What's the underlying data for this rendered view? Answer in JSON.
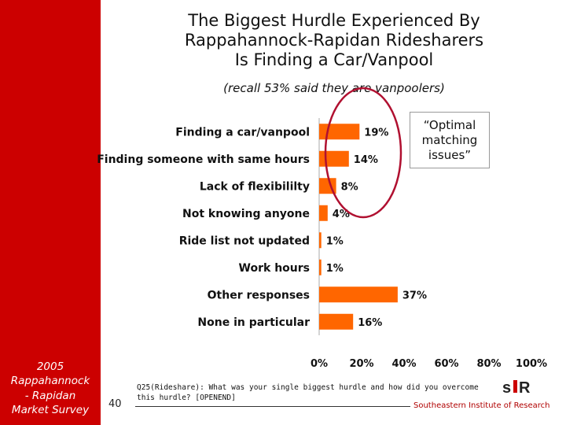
{
  "sidebar": {
    "text": "2005\nRappahannock\n- Rapidan\nMarket Survey",
    "color": "#cc0000"
  },
  "page_number": "40",
  "title": "The Biggest Hurdle Experienced By\nRappahannock-Rapidan Ridesharers\nIs Finding a Car/Vanpool",
  "subtitle": "(recall 53% said they are vanpoolers)",
  "callout": "“Optimal\nmatching\nissues”",
  "footnote": "Q25(Rideshare): What was your single biggest hurdle and how did you overcome this hurdle? [OPENEND]",
  "footer_org": "Southeastern Institute of Research",
  "logo_icon": "sir-logo-icon",
  "colors": {
    "bar": "#ff6600",
    "accent": "#cc0000",
    "circle": "#b01030"
  },
  "chart_data": {
    "type": "bar",
    "orientation": "horizontal",
    "categories": [
      "Finding a car/vanpool",
      "Finding someone with same hours",
      "Lack of flexibililty",
      "Not knowing anyone",
      "Ride list not updated",
      "Work hours",
      "Other responses",
      "None in particular"
    ],
    "values": [
      19,
      14,
      8,
      4,
      1,
      1,
      37,
      16
    ],
    "value_labels": [
      "19%",
      "14%",
      "8%",
      "4%",
      "1%",
      "1%",
      "37%",
      "16%"
    ],
    "xlim": [
      0,
      100
    ],
    "xticks": [
      "0%",
      "20%",
      "40%",
      "60%",
      "80%",
      "100%"
    ],
    "grid": false
  }
}
